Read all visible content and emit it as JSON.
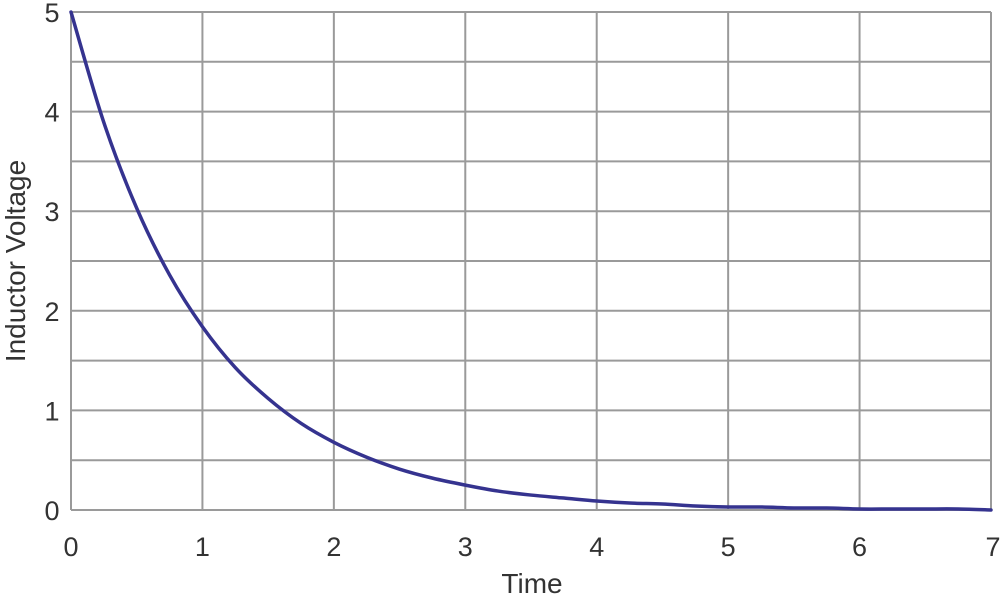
{
  "chart_data": {
    "type": "line",
    "title": "",
    "xlabel": "Time",
    "ylabel": "Inductor Voltage",
    "xlim": [
      0,
      7
    ],
    "ylim": [
      0,
      5
    ],
    "x_ticks": [
      "0",
      "1",
      "2",
      "3",
      "4",
      "5",
      "6",
      "7"
    ],
    "y_ticks": [
      "0",
      "1",
      "2",
      "3",
      "4",
      "5"
    ],
    "grid": true,
    "legend": "none",
    "series": [
      {
        "color": "#35338f",
        "x": [
          0,
          0.25,
          0.5,
          0.75,
          1,
          1.25,
          1.5,
          1.75,
          2,
          2.25,
          2.5,
          2.75,
          3,
          3.25,
          3.5,
          3.75,
          4,
          4.25,
          4.5,
          4.75,
          5,
          5.25,
          5.5,
          5.75,
          6,
          6.25,
          6.5,
          6.75,
          7
        ],
        "y": [
          5.0,
          3.89,
          3.03,
          2.36,
          1.84,
          1.43,
          1.12,
          0.87,
          0.68,
          0.53,
          0.41,
          0.32,
          0.25,
          0.19,
          0.15,
          0.12,
          0.09,
          0.07,
          0.06,
          0.04,
          0.03,
          0.03,
          0.02,
          0.02,
          0.01,
          0.01,
          0.01,
          0.01,
          0.0
        ]
      }
    ]
  }
}
